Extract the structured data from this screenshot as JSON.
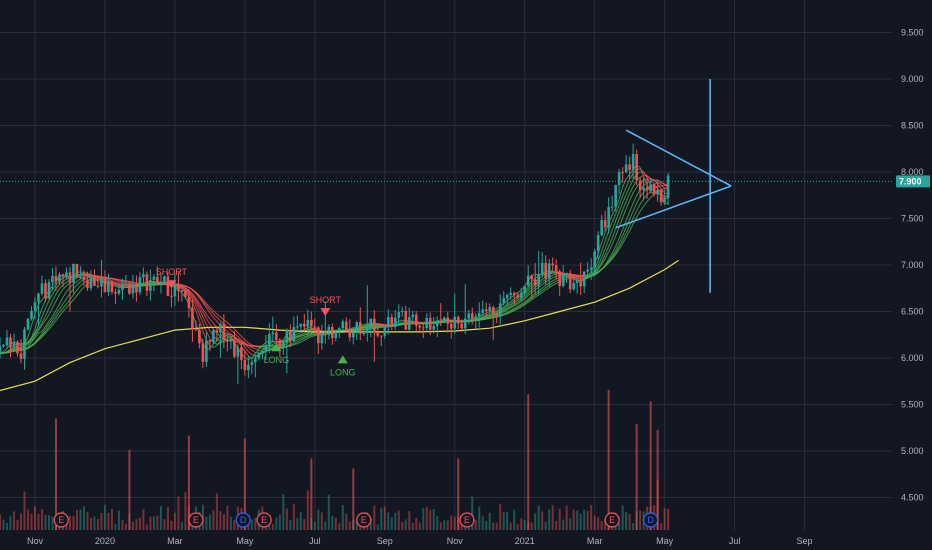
{
  "chart_data": {
    "type": "candlestick",
    "price_axis": {
      "ticks": [
        "9.500",
        "9.000",
        "8.500",
        "8.000",
        "7.500",
        "7.000",
        "6.500",
        "6.000",
        "5.500",
        "5.000",
        "4.500"
      ],
      "range": [
        4.15,
        9.85
      ],
      "current_price": "7.900"
    },
    "time_axis": {
      "labels": [
        "Nov",
        "2020",
        "Mar",
        "May",
        "Jul",
        "Sep",
        "Nov",
        "2021",
        "Mar",
        "May",
        "Jul",
        "Sep"
      ],
      "label_values": [
        1,
        3,
        5,
        7,
        9,
        11,
        13,
        15,
        17,
        19,
        21,
        23
      ],
      "range": [
        0,
        25.5
      ]
    },
    "price_path": [
      [
        0,
        6.05
      ],
      [
        0.3,
        6.2
      ],
      [
        0.6,
        6.1
      ],
      [
        1.0,
        6.6
      ],
      [
        1.3,
        6.75
      ],
      [
        1.6,
        6.9
      ],
      [
        1.9,
        6.85
      ],
      [
        2.2,
        6.95
      ],
      [
        2.5,
        6.85
      ],
      [
        2.8,
        6.82
      ],
      [
        3.1,
        6.78
      ],
      [
        3.4,
        6.75
      ],
      [
        3.8,
        6.78
      ],
      [
        4.2,
        6.83
      ],
      [
        4.6,
        6.8
      ],
      [
        5.0,
        6.75
      ],
      [
        5.3,
        6.6
      ],
      [
        5.6,
        6.25
      ],
      [
        5.8,
        6.05
      ],
      [
        6.1,
        6.2
      ],
      [
        6.4,
        6.3
      ],
      [
        6.7,
        6.1
      ],
      [
        7.0,
        5.95
      ],
      [
        7.3,
        6.1
      ],
      [
        7.6,
        6.2
      ],
      [
        7.9,
        6.15
      ],
      [
        8.2,
        6.3
      ],
      [
        8.5,
        6.28
      ],
      [
        8.8,
        6.35
      ],
      [
        9.1,
        6.22
      ],
      [
        9.4,
        6.3
      ],
      [
        9.8,
        6.3
      ],
      [
        10.2,
        6.35
      ],
      [
        10.6,
        6.38
      ],
      [
        11.0,
        6.32
      ],
      [
        11.4,
        6.42
      ],
      [
        11.8,
        6.36
      ],
      [
        12.2,
        6.38
      ],
      [
        12.6,
        6.42
      ],
      [
        13.0,
        6.38
      ],
      [
        13.4,
        6.42
      ],
      [
        13.8,
        6.48
      ],
      [
        14.2,
        6.55
      ],
      [
        14.6,
        6.68
      ],
      [
        14.9,
        6.75
      ],
      [
        15.1,
        6.92
      ],
      [
        15.3,
        6.88
      ],
      [
        15.6,
        6.95
      ],
      [
        15.9,
        6.9
      ],
      [
        16.2,
        6.85
      ],
      [
        16.5,
        6.82
      ],
      [
        16.8,
        6.95
      ],
      [
        17.1,
        7.3
      ],
      [
        17.3,
        7.5
      ],
      [
        17.5,
        7.65
      ],
      [
        17.7,
        7.9
      ],
      [
        17.9,
        8.0
      ],
      [
        18.1,
        8.1
      ],
      [
        18.3,
        7.9
      ],
      [
        18.5,
        7.75
      ],
      [
        18.7,
        7.8
      ],
      [
        18.9,
        7.6
      ],
      [
        19.1,
        7.9
      ]
    ],
    "volume_spikes": [
      {
        "x": 1.6,
        "v": 0.78
      },
      {
        "x": 3.7,
        "v": 0.56
      },
      {
        "x": 5.4,
        "v": 0.66
      },
      {
        "x": 7.0,
        "v": 0.64
      },
      {
        "x": 8.9,
        "v": 0.5
      },
      {
        "x": 10.1,
        "v": 0.43
      },
      {
        "x": 13.1,
        "v": 0.5
      },
      {
        "x": 15.1,
        "v": 0.95
      },
      {
        "x": 17.4,
        "v": 0.98
      },
      {
        "x": 18.2,
        "v": 0.74
      },
      {
        "x": 18.6,
        "v": 0.9
      },
      {
        "x": 18.8,
        "v": 0.7
      }
    ],
    "moving_averages": [
      {
        "color": "#e9e04f",
        "points": [
          [
            0,
            5.65
          ],
          [
            1,
            5.75
          ],
          [
            2,
            5.95
          ],
          [
            3,
            6.1
          ],
          [
            4,
            6.2
          ],
          [
            5,
            6.3
          ],
          [
            6,
            6.33
          ],
          [
            7,
            6.33
          ],
          [
            8,
            6.3
          ],
          [
            9,
            6.28
          ],
          [
            10,
            6.28
          ],
          [
            11,
            6.28
          ],
          [
            12,
            6.28
          ],
          [
            13,
            6.29
          ],
          [
            14,
            6.32
          ],
          [
            15,
            6.4
          ],
          [
            16,
            6.5
          ],
          [
            17,
            6.6
          ],
          [
            18,
            6.75
          ],
          [
            19,
            6.95
          ],
          [
            19.4,
            7.05
          ]
        ]
      }
    ],
    "ribbon": {
      "count": 9,
      "spread": 0.06
    },
    "signals": [
      {
        "label": "SHORT",
        "x": 4.9,
        "price": 6.75,
        "dir": "down",
        "color": "#f7525f"
      },
      {
        "label": "LONG",
        "x": 7.9,
        "price": 6.18,
        "dir": "up",
        "color": "#4caf50"
      },
      {
        "label": "SHORT",
        "x": 9.3,
        "price": 6.45,
        "dir": "down",
        "color": "#f7525f"
      },
      {
        "label": "LONG",
        "x": 9.8,
        "price": 6.05,
        "dir": "up",
        "color": "#4caf50"
      }
    ],
    "events": [
      {
        "type": "E",
        "x": 1.75,
        "color": "#f7525f"
      },
      {
        "type": "E",
        "x": 5.6,
        "color": "#f7525f"
      },
      {
        "type": "D",
        "x": 6.95,
        "color": "#2962ff"
      },
      {
        "type": "E",
        "x": 7.55,
        "color": "#f7525f"
      },
      {
        "type": "E",
        "x": 10.4,
        "color": "#f7525f"
      },
      {
        "type": "E",
        "x": 13.35,
        "color": "#f7525f"
      },
      {
        "type": "E",
        "x": 17.5,
        "color": "#f7525f"
      },
      {
        "type": "D",
        "x": 18.6,
        "color": "#2962ff"
      }
    ],
    "drawings": {
      "triangle_upper": [
        [
          17.9,
          8.45
        ],
        [
          20.9,
          7.85
        ]
      ],
      "triangle_lower": [
        [
          17.6,
          7.4
        ],
        [
          20.9,
          7.85
        ]
      ],
      "vertical_line": [
        [
          20.3,
          9.0
        ],
        [
          20.3,
          6.7
        ]
      ],
      "color": "#5ab5f5"
    },
    "colors": {
      "background": "#131722",
      "grid": "#2a2e39",
      "up": "#26a69a",
      "down": "#ef5350",
      "price_badge": "#26a69a"
    }
  }
}
